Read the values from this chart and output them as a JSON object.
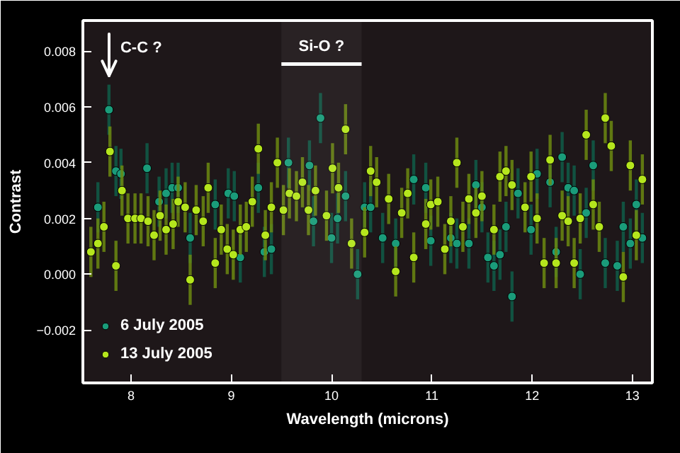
{
  "chart_data": {
    "type": "scatter",
    "xlabel": "Wavelength (microns)",
    "ylabel": "Contrast",
    "xlim": [
      7.52,
      13.2
    ],
    "ylim": [
      -0.0039,
      0.0091
    ],
    "xticks": [
      8,
      9,
      10,
      11,
      12,
      13
    ],
    "yticks": [
      -0.002,
      {
        "value": 0,
        "label": "0.000"
      },
      0.002,
      0.004,
      0.006,
      0.008
    ],
    "marker": "circle",
    "grid": false,
    "legend": "bottom left",
    "annotations": [
      "C-C ?"
    ],
    "bands": [
      {
        "axis": "x",
        "from": 9.5,
        "to": 10.3,
        "label": "Si-O ?",
        "color": "#ffffff"
      }
    ],
    "series": [
      {
        "name": "6 July 2005",
        "color": "#1a9c7a",
        "x": [
          7.67,
          7.78,
          7.85,
          7.9,
          8.16,
          8.28,
          8.35,
          8.41,
          8.47,
          8.59,
          8.84,
          8.97,
          9.03,
          9.09,
          9.27,
          9.33,
          9.4,
          9.57,
          9.78,
          9.82,
          9.89,
          10.0,
          10.06,
          10.14,
          10.26,
          10.33,
          10.39,
          10.51,
          10.64,
          10.82,
          10.94,
          10.99,
          11.19,
          11.25,
          11.37,
          11.44,
          11.5,
          11.56,
          11.62,
          11.68,
          11.74,
          11.8,
          11.86,
          11.99,
          12.05,
          12.18,
          12.24,
          12.3,
          12.36,
          12.42,
          12.48,
          12.54,
          12.61,
          12.73,
          12.85,
          12.91,
          12.98,
          13.04,
          13.1
        ],
        "values": [
          0.0024,
          0.0059,
          0.0037,
          0.0036,
          0.0038,
          0.0026,
          0.0029,
          0.0031,
          0.0031,
          0.0013,
          0.0025,
          0.0029,
          0.0028,
          0.0006,
          0.0031,
          0.0008,
          0.0009,
          0.004,
          0.0039,
          0.0019,
          0.0056,
          0.0013,
          0.002,
          0.0028,
          0.0,
          0.0024,
          0.0024,
          0.0013,
          0.0011,
          0.0034,
          0.0031,
          0.0012,
          0.0013,
          0.0011,
          0.0011,
          0.0032,
          0.0024,
          0.0006,
          0.0003,
          0.0007,
          0.0017,
          -0.0008,
          0.0029,
          0.0016,
          0.0036,
          0.0033,
          0.0008,
          0.0042,
          0.0031,
          0.003,
          0.0,
          0.0022,
          0.0039,
          0.0004,
          0.0003,
          0.0017,
          0.0011,
          0.0025,
          0.0013
        ],
        "errors": [
          0.0009,
          0.0009,
          0.0009,
          0.0009,
          0.0009,
          0.0009,
          0.0009,
          0.0009,
          0.0009,
          0.0009,
          0.0009,
          0.0009,
          0.0009,
          0.0009,
          0.0009,
          0.0009,
          0.0009,
          0.0009,
          0.0009,
          0.0009,
          0.0009,
          0.0009,
          0.0009,
          0.0009,
          0.0009,
          0.0009,
          0.0009,
          0.0009,
          0.0009,
          0.0009,
          0.0009,
          0.0009,
          0.0009,
          0.0009,
          0.0009,
          0.0009,
          0.0009,
          0.0009,
          0.0009,
          0.0009,
          0.0009,
          0.0009,
          0.0009,
          0.0009,
          0.0009,
          0.0009,
          0.0009,
          0.0009,
          0.0009,
          0.0009,
          0.0009,
          0.0009,
          0.0009,
          0.0009,
          0.0009,
          0.0009,
          0.0009,
          0.0009,
          0.0009
        ]
      },
      {
        "name": "13 July 2005",
        "color": "#b5e61d",
        "x": [
          7.6,
          7.67,
          7.73,
          7.79,
          7.85,
          7.91,
          7.97,
          8.04,
          8.1,
          8.17,
          8.23,
          8.29,
          8.35,
          8.42,
          8.47,
          8.54,
          8.59,
          8.65,
          8.72,
          8.77,
          8.84,
          8.9,
          8.96,
          9.02,
          9.09,
          9.15,
          9.21,
          9.27,
          9.34,
          9.4,
          9.46,
          9.52,
          9.58,
          9.65,
          9.71,
          9.77,
          9.84,
          9.95,
          10.01,
          10.07,
          10.14,
          10.2,
          10.33,
          10.39,
          10.45,
          10.57,
          10.64,
          10.7,
          10.76,
          10.82,
          10.94,
          10.99,
          11.06,
          11.13,
          11.19,
          11.25,
          11.31,
          11.37,
          11.44,
          11.5,
          11.62,
          11.68,
          11.74,
          11.8,
          11.93,
          11.99,
          12.05,
          12.12,
          12.18,
          12.24,
          12.3,
          12.36,
          12.42,
          12.48,
          12.54,
          12.61,
          12.67,
          12.73,
          12.79,
          12.91,
          12.98,
          13.04,
          13.1
        ],
        "values": [
          0.0008,
          0.0011,
          0.0017,
          0.0044,
          0.0003,
          0.003,
          0.002,
          0.002,
          0.002,
          0.0019,
          0.0014,
          0.0021,
          0.0016,
          0.0018,
          0.0026,
          0.0024,
          -0.0002,
          0.0023,
          0.0019,
          0.0031,
          0.0004,
          0.0016,
          0.0009,
          0.0007,
          0.0016,
          0.0017,
          0.0026,
          0.0045,
          0.0014,
          0.0024,
          0.004,
          0.0023,
          0.0029,
          0.0028,
          0.0033,
          0.0023,
          0.003,
          0.0021,
          0.0038,
          0.0031,
          0.0052,
          0.0011,
          0.0015,
          0.0037,
          0.0033,
          0.0027,
          0.0001,
          0.0022,
          0.0029,
          0.0006,
          0.0018,
          0.0025,
          0.0026,
          0.0009,
          0.0019,
          0.004,
          0.0017,
          0.0027,
          0.0022,
          0.0028,
          0.0016,
          0.0035,
          0.0037,
          0.0032,
          0.0024,
          0.0035,
          0.002,
          0.0004,
          0.0041,
          0.0004,
          0.0021,
          0.0019,
          0.0004,
          0.002,
          0.005,
          0.0025,
          0.0017,
          0.0056,
          0.0046,
          -0.0001,
          0.0039,
          0.0014,
          0.0034
        ],
        "errors": [
          0.0009,
          0.0009,
          0.0009,
          0.0009,
          0.0009,
          0.0009,
          0.0009,
          0.0009,
          0.0009,
          0.0009,
          0.0009,
          0.0009,
          0.0009,
          0.0009,
          0.0009,
          0.0009,
          0.0009,
          0.0009,
          0.0009,
          0.0009,
          0.0009,
          0.0009,
          0.0009,
          0.0009,
          0.0009,
          0.0009,
          0.0009,
          0.0009,
          0.0009,
          0.0009,
          0.0009,
          0.0009,
          0.0009,
          0.0009,
          0.0009,
          0.0009,
          0.0009,
          0.0009,
          0.0009,
          0.0009,
          0.0009,
          0.0009,
          0.0009,
          0.0009,
          0.0009,
          0.0009,
          0.0009,
          0.0009,
          0.0009,
          0.0009,
          0.0009,
          0.0009,
          0.0009,
          0.0009,
          0.0009,
          0.0009,
          0.0009,
          0.0009,
          0.0009,
          0.0009,
          0.0009,
          0.0009,
          0.0009,
          0.0009,
          0.0009,
          0.0009,
          0.0009,
          0.0009,
          0.0009,
          0.0009,
          0.0009,
          0.0009,
          0.0009,
          0.0009,
          0.0009,
          0.0009,
          0.0009,
          0.0009,
          0.0009,
          0.0009,
          0.0009,
          0.0009,
          0.0009
        ]
      }
    ]
  }
}
